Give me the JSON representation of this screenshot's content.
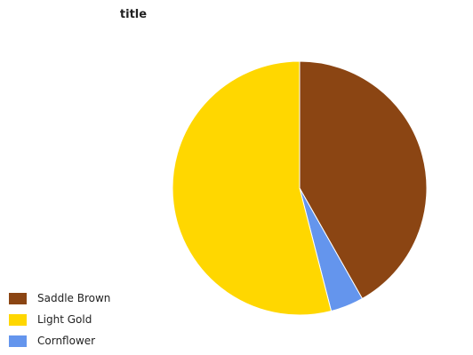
{
  "chart_data": {
    "type": "pie",
    "title": "title",
    "start_angle_deg": 90,
    "direction": "clockwise",
    "slices": [
      {
        "label": "Saddle Brown",
        "value": 41.8,
        "color": "#8B4513"
      },
      {
        "label": "Cornflower",
        "value": 4.2,
        "color": "#6495ED"
      },
      {
        "label": "Light Gold",
        "value": 54.0,
        "color": "#FFD700"
      }
    ],
    "legend": {
      "position": "bottom-left",
      "items": [
        {
          "label": "Saddle Brown",
          "color": "#8B4513"
        },
        {
          "label": "Light Gold",
          "color": "#FFD700"
        },
        {
          "label": "Cornflower",
          "color": "#6495ED"
        }
      ]
    }
  }
}
